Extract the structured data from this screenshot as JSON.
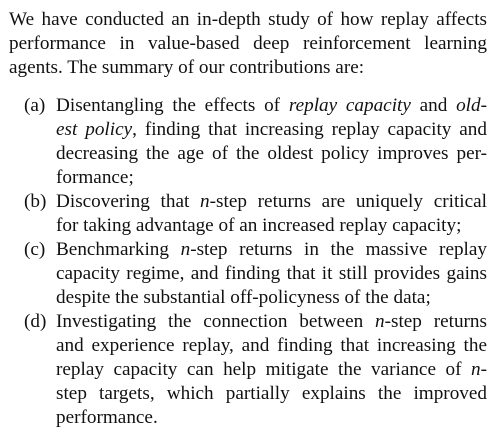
{
  "intro": {
    "lines": [
      "We have conducted an in-depth study of how replay affects",
      "performance in value-based deep reinforcement learning",
      "agents. The summary of our contributions are:"
    ]
  },
  "items": [
    {
      "label": "(a)",
      "l1_pre": "Disentangling the effects of ",
      "l1_em1": "replay capacity",
      "l1_mid": " and ",
      "l1_em2": "old-",
      "l2_em": "est policy",
      "l2_post": ", finding that increasing replay capacity and",
      "l3": "decreasing the age of the oldest policy improves per-",
      "l4": "formance;"
    },
    {
      "label": "(b)",
      "l1_pre": "Discovering that ",
      "l1_n": "n",
      "l1_post": "-step returns are uniquely critical",
      "l2": "for taking advantage of an increased replay capacity;"
    },
    {
      "label": "(c)",
      "l1_pre": "Benchmarking ",
      "l1_n": "n",
      "l1_post": "-step returns in the massive replay",
      "l2": "capacity regime, and finding that it still provides gains",
      "l3": "despite the substantial off-policyness of the data;"
    },
    {
      "label": "(d)",
      "l1_pre": "Investigating the connection between ",
      "l1_n": "n",
      "l1_post": "-step returns",
      "l2": "and experience replay, and finding that increasing the",
      "l3_pre": "replay capacity can help mitigate the variance of ",
      "l3_n": "n",
      "l3_post": "-",
      "l4": "step targets, which partially explains the improved",
      "l5": "performance."
    }
  ]
}
